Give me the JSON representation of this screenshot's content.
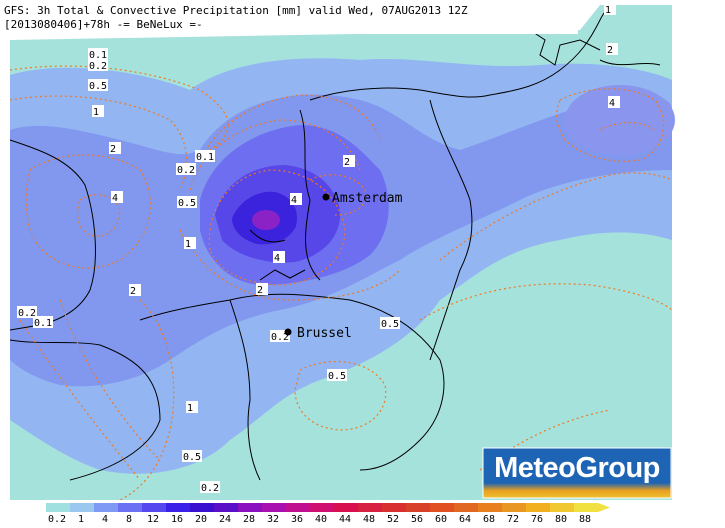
{
  "header": {
    "line1": "GFS: 3h Total & Convective Precipitation [mm] valid Wed, 07AUG2013 12Z",
    "line2": "[2013080406]+78h -= BeNeLux =-"
  },
  "cities": [
    {
      "name": "Amsterdam"
    },
    {
      "name": "Brussel"
    }
  ],
  "contour_labels": [
    "1",
    "2",
    "4",
    "0.1",
    "0.2",
    "0.5",
    "1",
    "2",
    "4",
    "2",
    "4",
    "0.1",
    "0.2",
    "0.5",
    "1",
    "4",
    "2",
    "0.2",
    "0.1",
    "2",
    "0.2",
    "0.5",
    "0.5",
    "1",
    "0.5",
    "0.2"
  ],
  "brand": {
    "name": "MeteoGroup",
    "color": "#1a5fad"
  },
  "legend": {
    "labels": [
      "0.2",
      "1",
      "4",
      "8",
      "12",
      "16",
      "20",
      "24",
      "28",
      "32",
      "36",
      "40",
      "44",
      "48",
      "52",
      "56",
      "60",
      "64",
      "68",
      "72",
      "76",
      "80",
      "88"
    ],
    "colors": [
      "#a0e0e0",
      "#9cc8f0",
      "#7e9af5",
      "#6c70f2",
      "#5548ee",
      "#3a20e8",
      "#3a10d0",
      "#5a10c8",
      "#8a10c0",
      "#a810b0",
      "#c01090",
      "#d01070",
      "#d81050",
      "#d82040",
      "#d83030",
      "#d84028",
      "#e05020",
      "#e06820",
      "#e88020",
      "#e89820",
      "#f0b020",
      "#f0c830",
      "#f0e040"
    ]
  },
  "colors": {
    "field_light": "#a6e2dc",
    "field_mid": "#8cb0f2",
    "field_blue": "#7f88ee",
    "field_dark": "#5a3ee0",
    "contour_dotted": "#f07820",
    "border": "#000000"
  }
}
